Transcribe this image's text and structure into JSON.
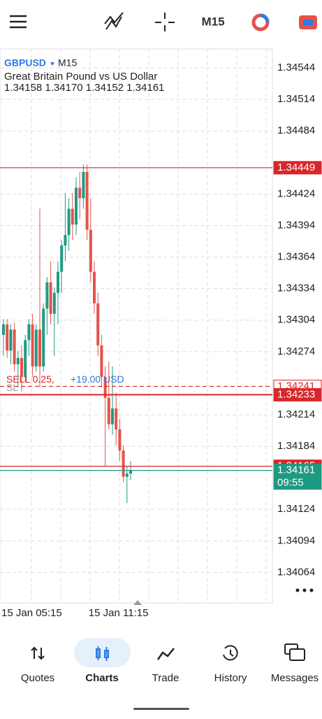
{
  "toolbar": {
    "timeframe": "M15"
  },
  "chart": {
    "type": "candlestick",
    "symbol": "GBPUSD",
    "timeframe": "M15",
    "description": "Great Britain Pound vs US Dollar",
    "ohlc": "1.34158 1.34170 1.34152 1.34161",
    "ylim": [
      1.34035,
      1.34562
    ],
    "yticks": [
      1.34544,
      1.34514,
      1.34484,
      1.34424,
      1.34394,
      1.34364,
      1.34334,
      1.34304,
      1.34274,
      1.34214,
      1.34184,
      1.34124,
      1.34094,
      1.34064
    ],
    "up_color": "#1f9a82",
    "down_color": "#e5524a",
    "times": [
      "15 Jan 05:15",
      null,
      null,
      null,
      null,
      null,
      null,
      null,
      null,
      null,
      null,
      null,
      null,
      null,
      null,
      null,
      null,
      null,
      null,
      null,
      null,
      null,
      null,
      null,
      "15 Jan 11:15",
      null,
      null,
      null,
      null,
      null,
      null,
      null,
      null,
      null,
      null,
      null
    ],
    "candles": [
      [
        1.3429,
        1.34305,
        1.3427,
        1.343
      ],
      [
        1.343,
        1.34305,
        1.34268,
        1.34275
      ],
      [
        1.34275,
        1.343,
        1.34262,
        1.34295
      ],
      [
        1.34295,
        1.34302,
        1.34255,
        1.34262
      ],
      [
        1.34262,
        1.34275,
        1.3424,
        1.34268
      ],
      [
        1.34268,
        1.3428,
        1.34236,
        1.3425
      ],
      [
        1.3425,
        1.3429,
        1.34245,
        1.34285
      ],
      [
        1.34285,
        1.34305,
        1.3427,
        1.343
      ],
      [
        1.343,
        1.3431,
        1.3425,
        1.3426
      ],
      [
        1.3426,
        1.343,
        1.34255,
        1.34295
      ],
      [
        1.34295,
        1.3441,
        1.3424,
        1.3426
      ],
      [
        1.3426,
        1.3432,
        1.34255,
        1.34315
      ],
      [
        1.34315,
        1.34345,
        1.3429,
        1.3434
      ],
      [
        1.3434,
        1.3436,
        1.343,
        1.3431
      ],
      [
        1.3431,
        1.34335,
        1.3427,
        1.3433
      ],
      [
        1.3433,
        1.3436,
        1.343,
        1.3435
      ],
      [
        1.3435,
        1.3438,
        1.3433,
        1.34375
      ],
      [
        1.34375,
        1.34425,
        1.3436,
        1.34385
      ],
      [
        1.34385,
        1.3442,
        1.3437,
        1.3441
      ],
      [
        1.3441,
        1.34425,
        1.3438,
        1.34395
      ],
      [
        1.34395,
        1.3444,
        1.34385,
        1.3443
      ],
      [
        1.3443,
        1.34445,
        1.344,
        1.3442
      ],
      [
        1.3442,
        1.34452,
        1.3441,
        1.34445
      ],
      [
        1.34445,
        1.34452,
        1.3438,
        1.3439
      ],
      [
        1.3439,
        1.3442,
        1.3434,
        1.3435
      ],
      [
        1.3435,
        1.3436,
        1.3431,
        1.3432
      ],
      [
        1.3432,
        1.3433,
        1.3427,
        1.3428
      ],
      [
        1.3428,
        1.3429,
        1.3424,
        1.3425
      ],
      [
        1.3425,
        1.3426,
        1.34165,
        1.3423
      ],
      [
        1.3423,
        1.34265,
        1.342,
        1.34205
      ],
      [
        1.34205,
        1.3426,
        1.34195,
        1.3422
      ],
      [
        1.3422,
        1.34235,
        1.34185,
        1.342
      ],
      [
        1.342,
        1.3421,
        1.3417,
        1.3418
      ],
      [
        1.3418,
        1.34185,
        1.3415,
        1.34155
      ],
      [
        1.34155,
        1.34165,
        1.3413,
        1.34158
      ],
      [
        1.34158,
        1.3417,
        1.34152,
        1.34161
      ]
    ],
    "price_lines": [
      {
        "value": 1.34449,
        "color": "#d8262a",
        "style": "solid"
      },
      {
        "value": 1.34241,
        "color": "#d8262a",
        "style": "dashed"
      },
      {
        "value": 1.34233,
        "color": "#d8262a",
        "style": "solid"
      },
      {
        "value": 1.34165,
        "color": "#d8262a",
        "style": "solid"
      },
      {
        "value": 1.34161,
        "color": "#1f9a82",
        "style": "solid"
      }
    ],
    "countdown": "09:55",
    "position": {
      "side_volume": "SELL 0.25,",
      "profit": "+19.00 USD",
      "stop": "SL"
    }
  },
  "nav": {
    "items": [
      "Quotes",
      "Charts",
      "Trade",
      "History",
      "Messages"
    ],
    "active": "Charts"
  }
}
